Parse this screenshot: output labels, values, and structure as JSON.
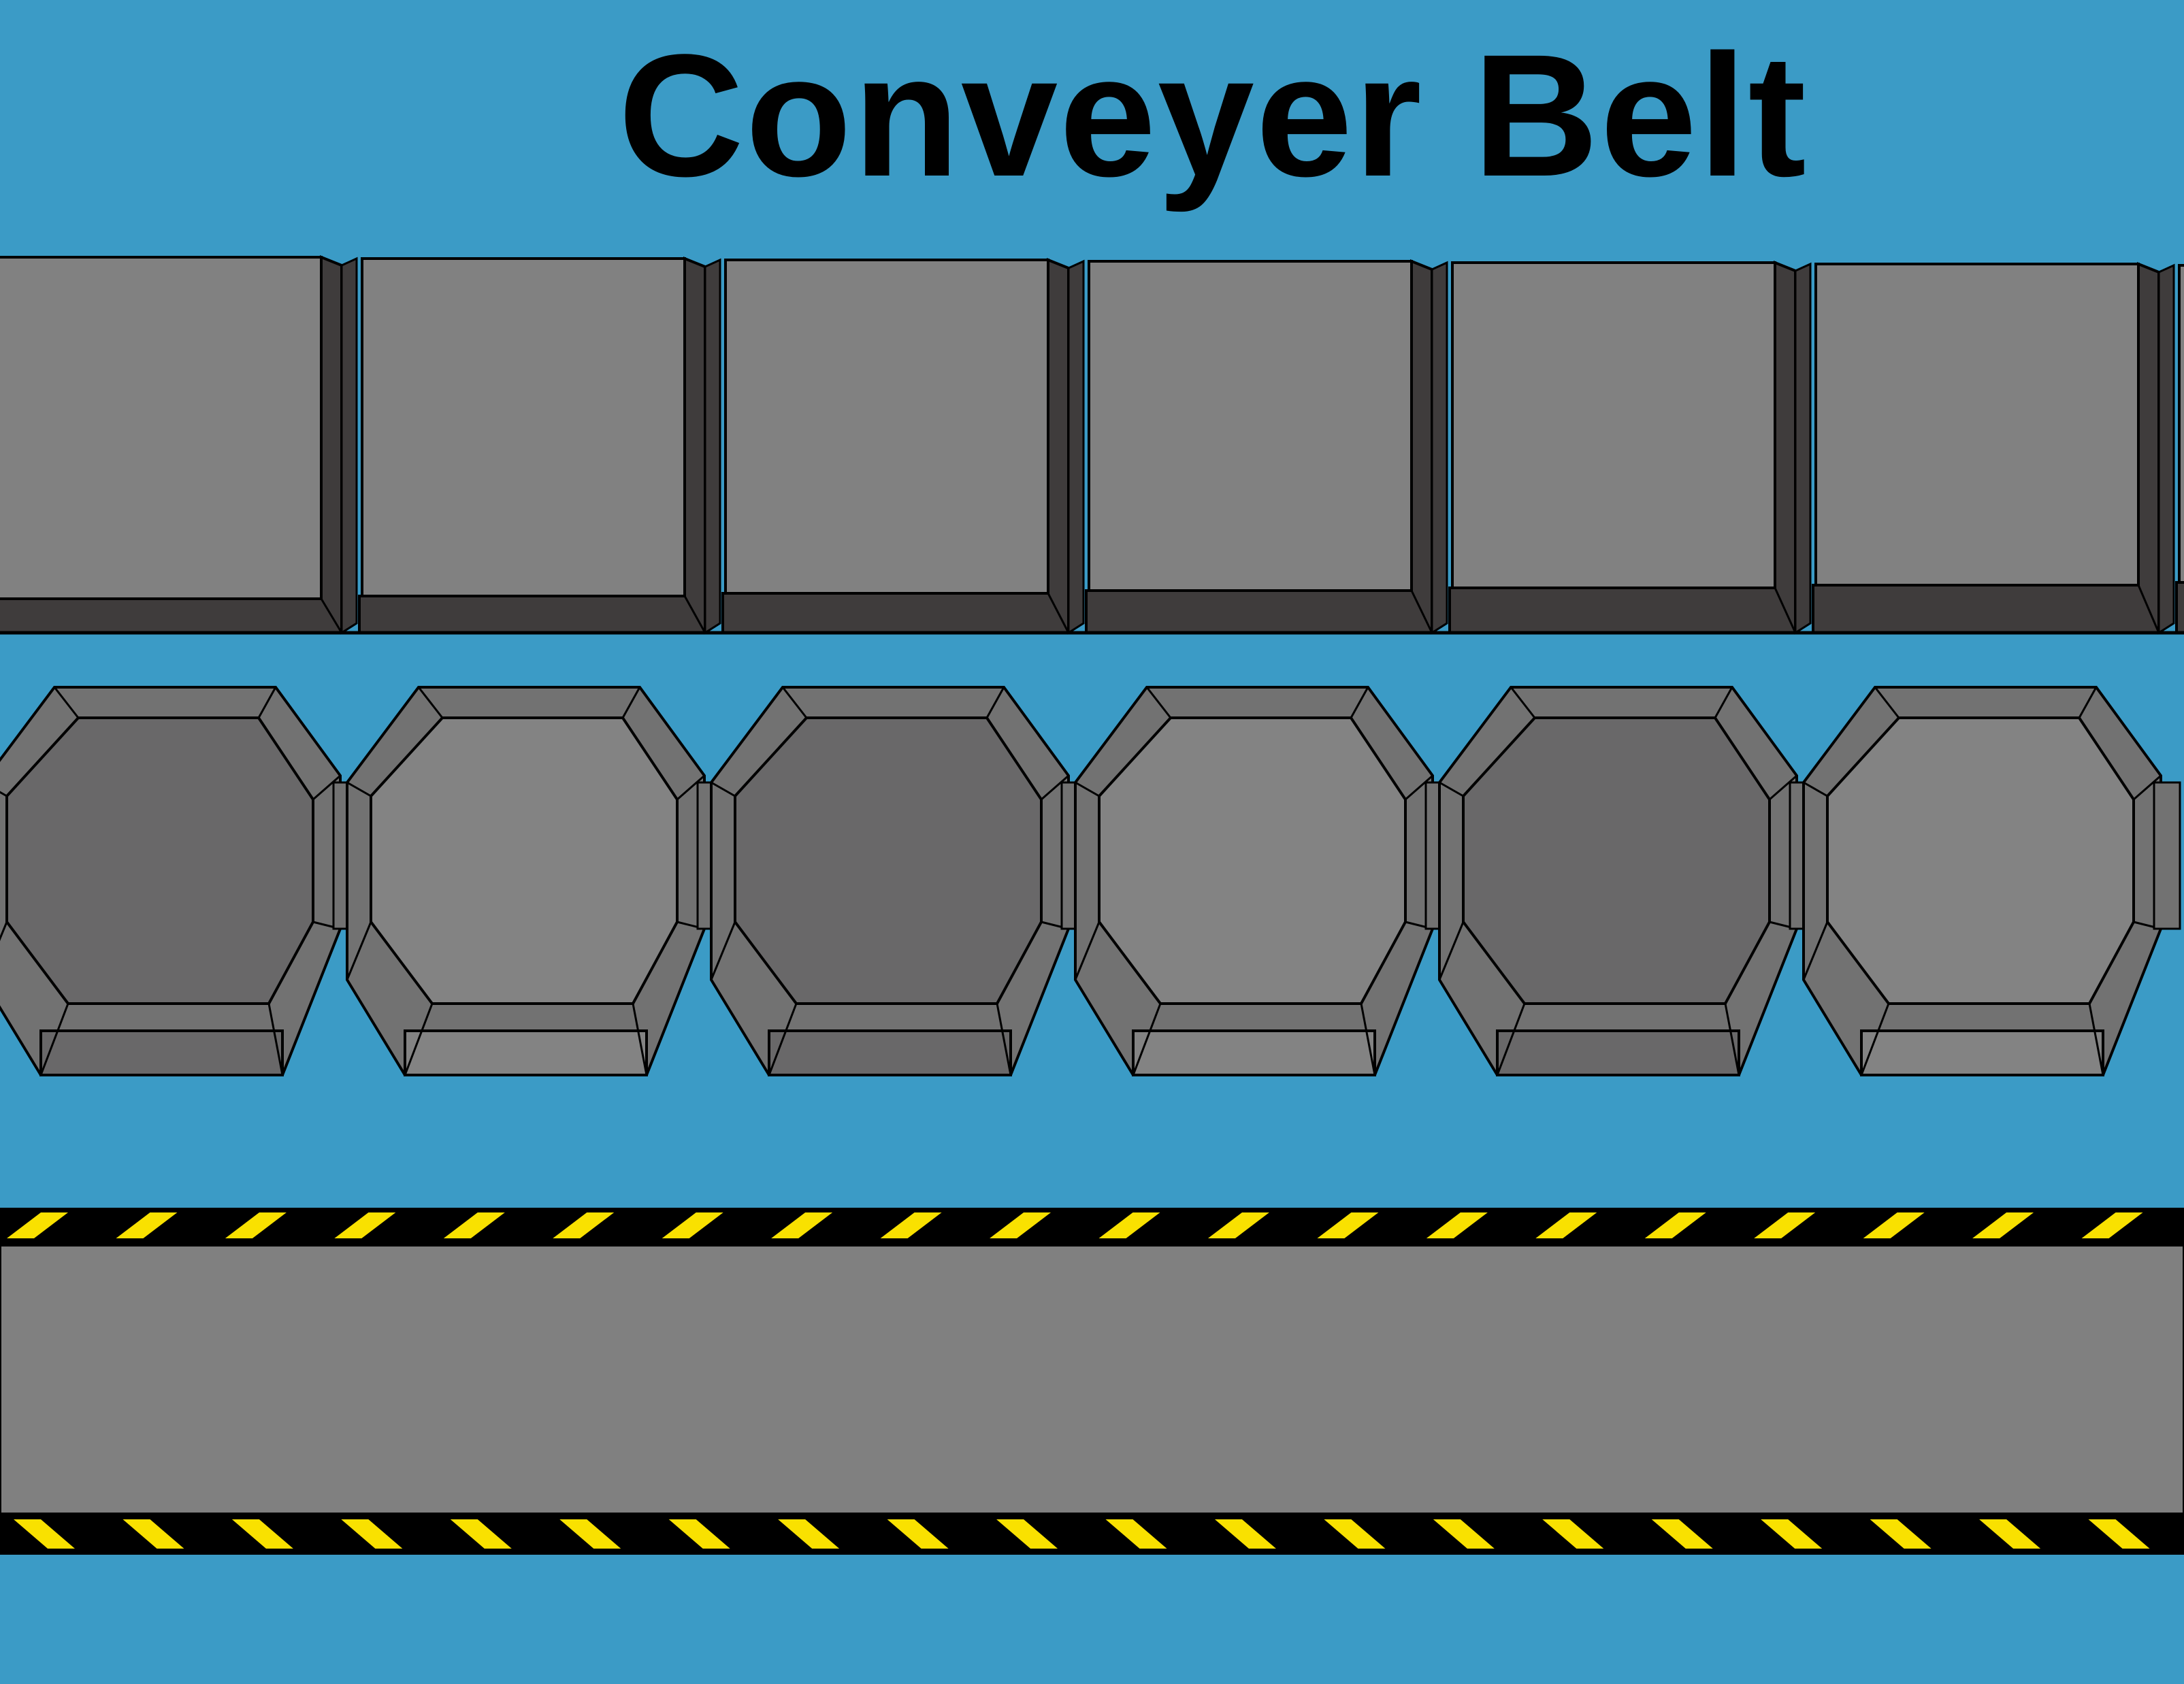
{
  "title": "Conveyer Belt",
  "colors": {
    "background": "#3b9bc6",
    "tile_face": "#818181",
    "tile_bevel": "#3f3c3c",
    "tile_bevel_light": "#5a5757",
    "octagon_dark_face": "#696869",
    "octagon_light_face": "#838383",
    "octagon_bevel": "#727272",
    "belt": "#808080",
    "stripe_black": "#000000",
    "stripe_yellow": "#f9e100",
    "outline": "#000000"
  },
  "sprites": {
    "square_tiles": {
      "count": 6,
      "partial_extra": true
    },
    "octagon_tiles": {
      "count": 6,
      "pattern": [
        "dark",
        "light",
        "dark",
        "light",
        "dark",
        "light"
      ]
    },
    "belt": {
      "top_stripe_count": 20,
      "bottom_stripe_count": 20
    }
  }
}
